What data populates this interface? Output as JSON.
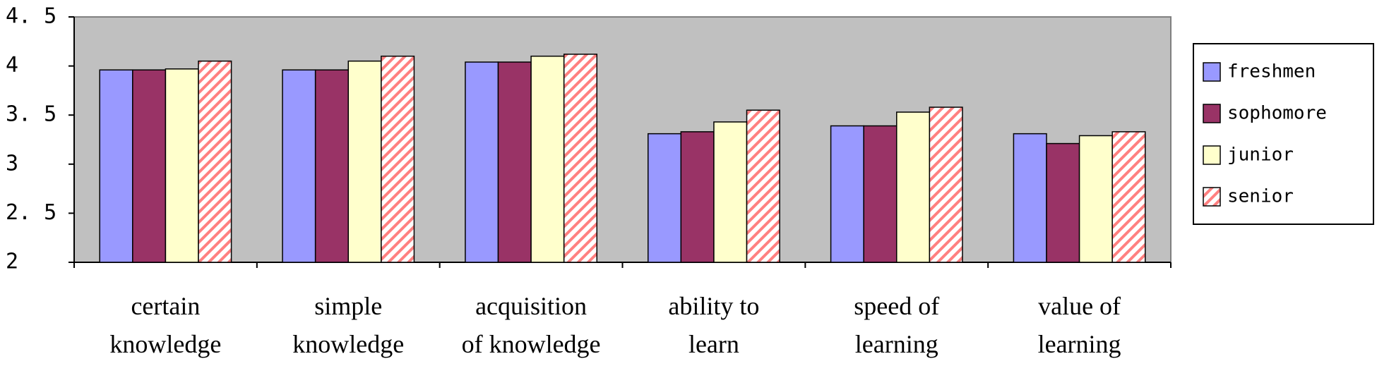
{
  "chart_data": {
    "type": "bar",
    "categories": [
      [
        "certain",
        "knowledge"
      ],
      [
        "simple",
        "knowledge"
      ],
      [
        "acquisition",
        "of knowledge"
      ],
      [
        "ability to",
        "learn"
      ],
      [
        "speed of",
        "learning"
      ],
      [
        "value of",
        "learning"
      ]
    ],
    "series": [
      {
        "name": "freshmen",
        "color": "#9999ff",
        "values": [
          3.96,
          3.96,
          4.04,
          3.31,
          3.39,
          3.31
        ]
      },
      {
        "name": "sophomore",
        "color": "#993366",
        "values": [
          3.96,
          3.96,
          4.04,
          3.33,
          3.39,
          3.21
        ]
      },
      {
        "name": "junior",
        "color": "#ffffcc",
        "values": [
          3.97,
          4.05,
          4.1,
          3.43,
          3.53,
          3.29
        ]
      },
      {
        "name": "senior",
        "color": "#ff8080",
        "hatch": true,
        "values": [
          4.05,
          4.1,
          4.12,
          3.55,
          3.58,
          3.33
        ]
      }
    ],
    "ylim": [
      2,
      4.5
    ],
    "yticks": [
      2,
      {
        "value": 2.5,
        "label": "2. 5"
      },
      3,
      {
        "value": 3.5,
        "label": "3. 5"
      },
      4,
      {
        "value": 4.5,
        "label": "4. 5"
      }
    ],
    "plot_background": "#c0c0c0",
    "legend": "right"
  }
}
